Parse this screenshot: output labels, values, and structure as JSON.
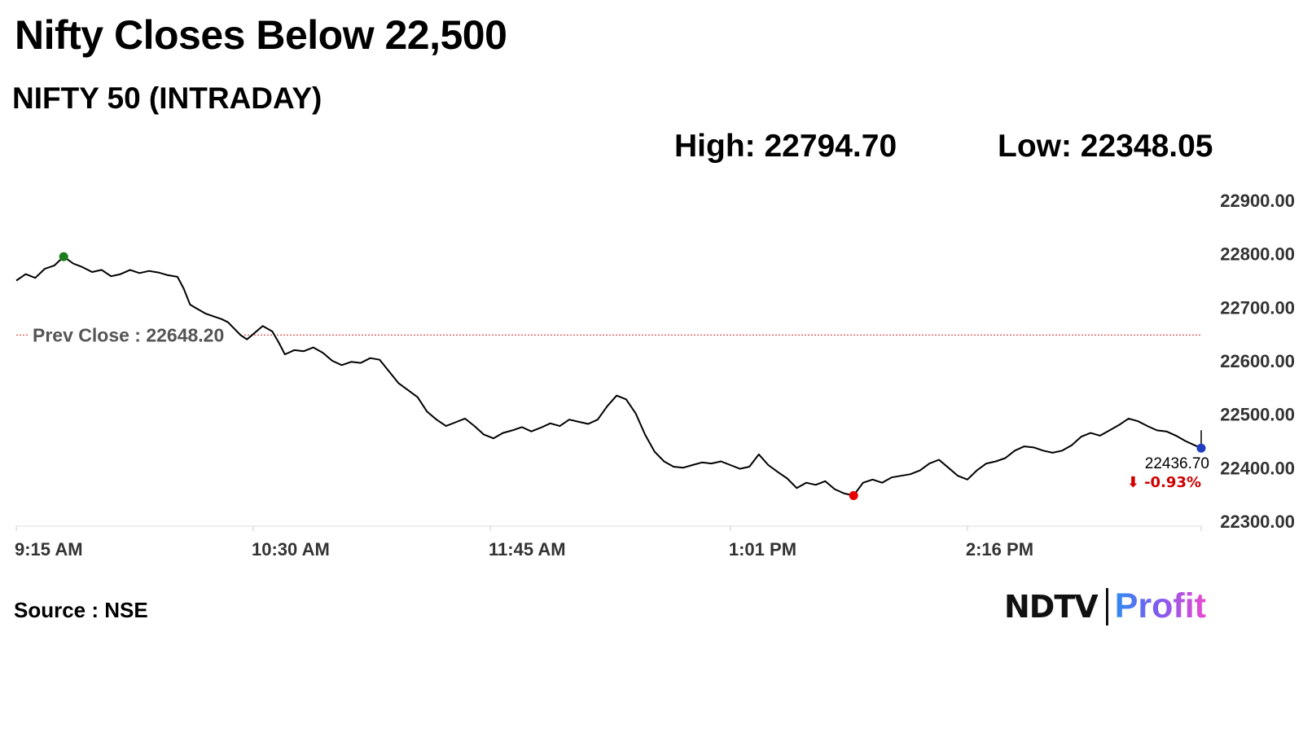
{
  "header": {
    "headline": "Nifty Closes Below 22,500",
    "subhead": "NIFTY 50 (INTRADAY)",
    "high_text": "High: 22794.70",
    "low_text": "Low: 22348.05"
  },
  "footer": {
    "source": "Source : NSE",
    "logo_left": "NDTV",
    "logo_right": "Profit"
  },
  "colors": {
    "line": "#000000",
    "prev_close_line": "#d9534f",
    "high_marker": "#1a7f1a",
    "low_marker": "#e60000",
    "last_marker": "#1f3fbf",
    "change_negative": "#d00000",
    "axis_text": "#333333"
  },
  "chart_data": {
    "type": "line",
    "title": "NIFTY 50 (INTRADAY)",
    "xlabel": "",
    "ylabel": "",
    "ylim": [
      22300,
      22900
    ],
    "xlim": [
      "09:15",
      "15:30"
    ],
    "y_ticks": [
      "22900.00",
      "22800.00",
      "22700.00",
      "22600.00",
      "22500.00",
      "22400.00",
      "22300.00"
    ],
    "x_ticks": [
      "9:15 AM",
      "10:30 AM",
      "11:45 AM",
      "1:01 PM",
      "2:16 PM"
    ],
    "prev_close": {
      "label": "Prev Close : 22648.20",
      "value": 22648.2
    },
    "high": {
      "time": "09:30",
      "value": 22794.7
    },
    "low": {
      "time": "13:40",
      "value": 22348.05
    },
    "last": {
      "time": "15:30",
      "value": 22436.7,
      "value_label": "22436.70",
      "change_label": "⬇ -0.93%"
    },
    "grid": false,
    "series": [
      {
        "points": [
          [
            "09:15",
            22750
          ],
          [
            "09:18",
            22762
          ],
          [
            "09:21",
            22755
          ],
          [
            "09:24",
            22772
          ],
          [
            "09:27",
            22778
          ],
          [
            "09:30",
            22794.7
          ],
          [
            "09:33",
            22782
          ],
          [
            "09:36",
            22775
          ],
          [
            "09:39",
            22766
          ],
          [
            "09:42",
            22770
          ],
          [
            "09:45",
            22758
          ],
          [
            "09:48",
            22762
          ],
          [
            "09:51",
            22770
          ],
          [
            "09:54",
            22764
          ],
          [
            "09:57",
            22768
          ],
          [
            "10:00",
            22765
          ],
          [
            "10:03",
            22760
          ],
          [
            "10:06",
            22757
          ],
          [
            "10:08",
            22735
          ],
          [
            "10:10",
            22705
          ],
          [
            "10:12",
            22698
          ],
          [
            "10:15",
            22688
          ],
          [
            "10:18",
            22682
          ],
          [
            "10:20",
            22678
          ],
          [
            "10:22",
            22672
          ],
          [
            "10:24",
            22660
          ],
          [
            "10:26",
            22648
          ],
          [
            "10:28",
            22640
          ],
          [
            "10:30",
            22650
          ],
          [
            "10:33",
            22665
          ],
          [
            "10:36",
            22655
          ],
          [
            "10:38",
            22635
          ],
          [
            "10:40",
            22612
          ],
          [
            "10:43",
            22620
          ],
          [
            "10:46",
            22618
          ],
          [
            "10:49",
            22625
          ],
          [
            "10:52",
            22615
          ],
          [
            "10:55",
            22600
          ],
          [
            "10:58",
            22592
          ],
          [
            "11:01",
            22598
          ],
          [
            "11:04",
            22596
          ],
          [
            "11:07",
            22605
          ],
          [
            "11:10",
            22602
          ],
          [
            "11:13",
            22580
          ],
          [
            "11:16",
            22558
          ],
          [
            "11:19",
            22545
          ],
          [
            "11:22",
            22532
          ],
          [
            "11:25",
            22505
          ],
          [
            "11:28",
            22490
          ],
          [
            "11:31",
            22478
          ],
          [
            "11:34",
            22485
          ],
          [
            "11:37",
            22492
          ],
          [
            "11:40",
            22478
          ],
          [
            "11:43",
            22462
          ],
          [
            "11:46",
            22455
          ],
          [
            "11:49",
            22465
          ],
          [
            "11:52",
            22470
          ],
          [
            "11:55",
            22476
          ],
          [
            "11:58",
            22468
          ],
          [
            "12:01",
            22475
          ],
          [
            "12:04",
            22483
          ],
          [
            "12:07",
            22478
          ],
          [
            "12:10",
            22490
          ],
          [
            "12:13",
            22486
          ],
          [
            "12:16",
            22482
          ],
          [
            "12:19",
            22490
          ],
          [
            "12:22",
            22515
          ],
          [
            "12:25",
            22535
          ],
          [
            "12:28",
            22528
          ],
          [
            "12:31",
            22502
          ],
          [
            "12:34",
            22462
          ],
          [
            "12:37",
            22430
          ],
          [
            "12:40",
            22412
          ],
          [
            "12:43",
            22402
          ],
          [
            "12:46",
            22400
          ],
          [
            "12:49",
            22405
          ],
          [
            "12:52",
            22410
          ],
          [
            "12:55",
            22408
          ],
          [
            "12:58",
            22412
          ],
          [
            "13:01",
            22405
          ],
          [
            "13:04",
            22398
          ],
          [
            "13:07",
            22402
          ],
          [
            "13:10",
            22425
          ],
          [
            "13:13",
            22405
          ],
          [
            "13:16",
            22392
          ],
          [
            "13:19",
            22380
          ],
          [
            "13:22",
            22362
          ],
          [
            "13:25",
            22372
          ],
          [
            "13:28",
            22368
          ],
          [
            "13:31",
            22375
          ],
          [
            "13:34",
            22360
          ],
          [
            "13:37",
            22352
          ],
          [
            "13:40",
            22348.05
          ],
          [
            "13:43",
            22372
          ],
          [
            "13:46",
            22378
          ],
          [
            "13:49",
            22372
          ],
          [
            "13:52",
            22382
          ],
          [
            "13:55",
            22385
          ],
          [
            "13:58",
            22388
          ],
          [
            "14:01",
            22395
          ],
          [
            "14:04",
            22408
          ],
          [
            "14:07",
            22415
          ],
          [
            "14:10",
            22400
          ],
          [
            "14:13",
            22385
          ],
          [
            "14:16",
            22378
          ],
          [
            "14:19",
            22395
          ],
          [
            "14:22",
            22408
          ],
          [
            "14:25",
            22412
          ],
          [
            "14:28",
            22418
          ],
          [
            "14:31",
            22432
          ],
          [
            "14:34",
            22440
          ],
          [
            "14:37",
            22438
          ],
          [
            "14:40",
            22432
          ],
          [
            "14:43",
            22428
          ],
          [
            "14:46",
            22432
          ],
          [
            "14:49",
            22442
          ],
          [
            "14:52",
            22458
          ],
          [
            "14:55",
            22465
          ],
          [
            "14:58",
            22460
          ],
          [
            "15:01",
            22470
          ],
          [
            "15:04",
            22480
          ],
          [
            "15:07",
            22492
          ],
          [
            "15:10",
            22487
          ],
          [
            "15:13",
            22478
          ],
          [
            "15:16",
            22470
          ],
          [
            "15:19",
            22468
          ],
          [
            "15:22",
            22460
          ],
          [
            "15:25",
            22450
          ],
          [
            "15:28",
            22442
          ],
          [
            "15:30",
            22436.7
          ]
        ]
      }
    ]
  }
}
